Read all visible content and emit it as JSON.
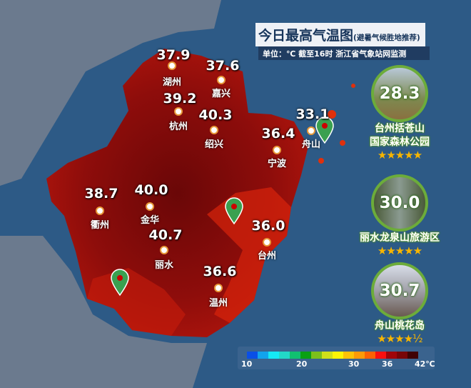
{
  "header": {
    "title": "今日最高气温图",
    "title_note": "(避暑气候胜地推荐)",
    "subtitle": "单位：℃  截至16时  浙江省气象站网监测"
  },
  "cities": [
    {
      "name": "湖州",
      "value": "37.9"
    },
    {
      "name": "嘉兴",
      "value": "37.6"
    },
    {
      "name": "杭州",
      "value": "39.2"
    },
    {
      "name": "绍兴",
      "value": "40.3"
    },
    {
      "name": "宁波",
      "value": "36.4"
    },
    {
      "name": "舟山",
      "value": "33.1"
    },
    {
      "name": "衢州",
      "value": "38.7"
    },
    {
      "name": "金华",
      "value": "40.0"
    },
    {
      "name": "丽水",
      "value": "40.7"
    },
    {
      "name": "台州",
      "value": "36.0"
    },
    {
      "name": "温州",
      "value": "36.6"
    }
  ],
  "resorts": [
    {
      "name_line1": "台州括苍山",
      "name_line2": "国家森林公园",
      "value": "28.3",
      "stars": "★★★★★",
      "rating": 5
    },
    {
      "name_line1": "丽水龙泉山旅游区",
      "name_line2": "",
      "value": "30.0",
      "stars": "★★★★★",
      "rating": 5
    },
    {
      "name_line1": "舟山桃花岛",
      "name_line2": "",
      "value": "30.7",
      "stars": "★★★★½",
      "rating": 4.5
    }
  ],
  "legend": {
    "labels": [
      "10",
      "20",
      "30",
      "36",
      "42℃"
    ],
    "colors": [
      "#0a4fe6",
      "#12a3ee",
      "#15e8f6",
      "#22d8c8",
      "#10c070",
      "#0aa012",
      "#7cc01a",
      "#d0e01a",
      "#fcf505",
      "#fcc308",
      "#fc9a08",
      "#fc6204",
      "#fa1010",
      "#a0050a",
      "#780508",
      "#400204"
    ]
  },
  "map_colors": {
    "land_outside": "#6b7a8e",
    "sea": "#2d5a86",
    "heat_main": "#8a0c0c",
    "heat_high": "#5e0606",
    "heat_low": "#f0320c"
  }
}
